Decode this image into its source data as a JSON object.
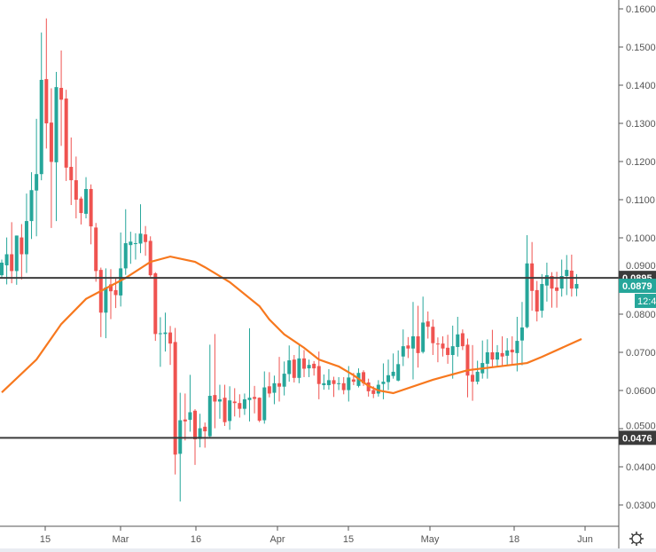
{
  "chart_data": {
    "type": "candlestick",
    "title": "",
    "colors": {
      "up": "#26a69a",
      "down": "#ef5350",
      "ma": "#f7781e",
      "level_line": "#3b3b3b",
      "last_price": "#26a69a"
    },
    "ylim": [
      0.027,
      0.162
    ],
    "y_ticks": [
      "0.1600",
      "0.1500",
      "0.1400",
      "0.1300",
      "0.1200",
      "0.1100",
      "0.1000",
      "0.0900",
      "0.0800",
      "0.0700",
      "0.0600",
      "0.0500",
      "0.0400",
      "0.0300"
    ],
    "x_tick_labels": [
      "15",
      "Mar",
      "16",
      "Apr",
      "15",
      "May",
      "18",
      "Jun"
    ],
    "horizontal_levels": [
      {
        "value": 0.0895,
        "label": "0.0895"
      },
      {
        "value": 0.0476,
        "label": "0.0476"
      }
    ],
    "last_price": {
      "value": 0.0879,
      "label": "0.0879",
      "countdown": "12:4"
    },
    "candles": [
      [
        0.0902,
        0.0943,
        0.0893,
        0.0935
      ],
      [
        0.0928,
        0.1001,
        0.0878,
        0.0957
      ],
      [
        0.0957,
        0.1041,
        0.0881,
        0.0913
      ],
      [
        0.0913,
        0.1006,
        0.0877,
        0.1006
      ],
      [
        0.1001,
        0.1036,
        0.0891,
        0.0957
      ],
      [
        0.0957,
        0.1116,
        0.0908,
        0.1044
      ],
      [
        0.1044,
        0.1172,
        0.0997,
        0.1125
      ],
      [
        0.1124,
        0.1312,
        0.1004,
        0.1167
      ],
      [
        0.1167,
        0.1538,
        0.1151,
        0.1414
      ],
      [
        0.1416,
        0.1575,
        0.1234,
        0.13
      ],
      [
        0.1302,
        0.1392,
        0.1026,
        0.1199
      ],
      [
        0.1198,
        0.1435,
        0.1044,
        0.1395
      ],
      [
        0.1393,
        0.1491,
        0.1241,
        0.1362
      ],
      [
        0.1365,
        0.1388,
        0.1149,
        0.1184
      ],
      [
        0.1186,
        0.1263,
        0.1086,
        0.1151
      ],
      [
        0.1151,
        0.1213,
        0.1051,
        0.11
      ],
      [
        0.1103,
        0.1108,
        0.1035,
        0.1065
      ],
      [
        0.1063,
        0.1159,
        0.1051,
        0.1128
      ],
      [
        0.1128,
        0.114,
        0.0983,
        0.103
      ],
      [
        0.1027,
        0.1039,
        0.0885,
        0.0913
      ],
      [
        0.0916,
        0.0922,
        0.074,
        0.0804
      ],
      [
        0.0804,
        0.092,
        0.0737,
        0.087
      ],
      [
        0.0878,
        0.0918,
        0.0787,
        0.086
      ],
      [
        0.0863,
        0.0893,
        0.0816,
        0.085
      ],
      [
        0.0849,
        0.1014,
        0.082,
        0.092
      ],
      [
        0.092,
        0.1075,
        0.0903,
        0.0986
      ],
      [
        0.0981,
        0.1016,
        0.0932,
        0.099
      ],
      [
        0.0985,
        0.1012,
        0.0943,
        0.0986
      ],
      [
        0.0985,
        0.1088,
        0.096,
        0.1011
      ],
      [
        0.1009,
        0.1031,
        0.0953,
        0.0989
      ],
      [
        0.0992,
        0.1004,
        0.0898,
        0.0902
      ],
      [
        0.0907,
        0.091,
        0.073,
        0.0748
      ],
      [
        0.0749,
        0.0792,
        0.0662,
        0.075
      ],
      [
        0.0748,
        0.0804,
        0.0702,
        0.0752
      ],
      [
        0.0752,
        0.0769,
        0.0667,
        0.0723
      ],
      [
        0.0727,
        0.0764,
        0.038,
        0.0432
      ],
      [
        0.0434,
        0.0594,
        0.0309,
        0.0522
      ],
      [
        0.0524,
        0.0592,
        0.0469,
        0.0519
      ],
      [
        0.0523,
        0.0641,
        0.0492,
        0.0543
      ],
      [
        0.0547,
        0.0551,
        0.0405,
        0.0472
      ],
      [
        0.0473,
        0.0539,
        0.0451,
        0.0501
      ],
      [
        0.0505,
        0.0516,
        0.045,
        0.0493
      ],
      [
        0.048,
        0.072,
        0.0476,
        0.0586
      ],
      [
        0.0588,
        0.0748,
        0.0501,
        0.0571
      ],
      [
        0.0571,
        0.0615,
        0.0526,
        0.0577
      ],
      [
        0.0581,
        0.0615,
        0.0507,
        0.0517
      ],
      [
        0.052,
        0.0611,
        0.0497,
        0.0574
      ],
      [
        0.0571,
        0.0606,
        0.0532,
        0.0567
      ],
      [
        0.0567,
        0.059,
        0.0529,
        0.0552
      ],
      [
        0.0552,
        0.0592,
        0.0536,
        0.0577
      ],
      [
        0.0575,
        0.0763,
        0.0519,
        0.0581
      ],
      [
        0.0583,
        0.0612,
        0.054,
        0.0578
      ],
      [
        0.0581,
        0.0582,
        0.0517,
        0.0521
      ],
      [
        0.0522,
        0.065,
        0.0513,
        0.0608
      ],
      [
        0.0611,
        0.0648,
        0.0582,
        0.0592
      ],
      [
        0.0594,
        0.0639,
        0.0564,
        0.0619
      ],
      [
        0.0619,
        0.0688,
        0.0571,
        0.061
      ],
      [
        0.061,
        0.0676,
        0.0587,
        0.0644
      ],
      [
        0.0643,
        0.0718,
        0.0623,
        0.0679
      ],
      [
        0.0681,
        0.0693,
        0.0621,
        0.0633
      ],
      [
        0.0633,
        0.0718,
        0.0619,
        0.0684
      ],
      [
        0.0684,
        0.0706,
        0.0635,
        0.0657
      ],
      [
        0.0658,
        0.0681,
        0.0635,
        0.0667
      ],
      [
        0.067,
        0.0677,
        0.0639,
        0.0658
      ],
      [
        0.0664,
        0.0702,
        0.0577,
        0.0617
      ],
      [
        0.0614,
        0.0642,
        0.0602,
        0.0619
      ],
      [
        0.0614,
        0.0656,
        0.0602,
        0.0627
      ],
      [
        0.0627,
        0.0636,
        0.0583,
        0.0617
      ],
      [
        0.0617,
        0.0635,
        0.0601,
        0.0619
      ],
      [
        0.0619,
        0.0635,
        0.059,
        0.0601
      ],
      [
        0.0601,
        0.0664,
        0.0571,
        0.0634
      ],
      [
        0.0629,
        0.0646,
        0.0614,
        0.0623
      ],
      [
        0.0612,
        0.0658,
        0.0608,
        0.0646
      ],
      [
        0.0648,
        0.0653,
        0.0612,
        0.0619
      ],
      [
        0.0621,
        0.0631,
        0.0584,
        0.0598
      ],
      [
        0.0601,
        0.0611,
        0.058,
        0.0591
      ],
      [
        0.0592,
        0.0627,
        0.0584,
        0.0615
      ],
      [
        0.0617,
        0.0671,
        0.0577,
        0.0623
      ],
      [
        0.0622,
        0.0681,
        0.0601,
        0.064
      ],
      [
        0.0638,
        0.0697,
        0.0631,
        0.0649
      ],
      [
        0.0626,
        0.0705,
        0.0624,
        0.0669
      ],
      [
        0.0689,
        0.076,
        0.0664,
        0.0716
      ],
      [
        0.0718,
        0.074,
        0.0685,
        0.071
      ],
      [
        0.071,
        0.0832,
        0.0629,
        0.0742
      ],
      [
        0.0742,
        0.0822,
        0.066,
        0.0698
      ],
      [
        0.0701,
        0.0846,
        0.0697,
        0.0778
      ],
      [
        0.0781,
        0.0807,
        0.0736,
        0.0767
      ],
      [
        0.0767,
        0.0786,
        0.0693,
        0.0724
      ],
      [
        0.0723,
        0.0739,
        0.0674,
        0.0722
      ],
      [
        0.0723,
        0.0742,
        0.0689,
        0.071
      ],
      [
        0.0712,
        0.0746,
        0.067,
        0.0693
      ],
      [
        0.0693,
        0.077,
        0.0631,
        0.0716
      ],
      [
        0.0714,
        0.0793,
        0.0689,
        0.0747
      ],
      [
        0.075,
        0.076,
        0.0706,
        0.0716
      ],
      [
        0.072,
        0.0736,
        0.0582,
        0.0639
      ],
      [
        0.0641,
        0.0719,
        0.0573,
        0.0623
      ],
      [
        0.0623,
        0.0678,
        0.0616,
        0.0649
      ],
      [
        0.0645,
        0.0731,
        0.0631,
        0.0672
      ],
      [
        0.067,
        0.0734,
        0.0631,
        0.07
      ],
      [
        0.07,
        0.0759,
        0.0662,
        0.0681
      ],
      [
        0.0681,
        0.0719,
        0.0662,
        0.07
      ],
      [
        0.0698,
        0.0742,
        0.0666,
        0.0689
      ],
      [
        0.0691,
        0.0737,
        0.0667,
        0.0705
      ],
      [
        0.0707,
        0.0742,
        0.0666,
        0.07
      ],
      [
        0.0698,
        0.0793,
        0.065,
        0.073
      ],
      [
        0.0731,
        0.0832,
        0.0666,
        0.0765
      ],
      [
        0.0766,
        0.1007,
        0.0763,
        0.0933
      ],
      [
        0.0933,
        0.0989,
        0.0809,
        0.0861
      ],
      [
        0.0863,
        0.0887,
        0.0781,
        0.0807
      ],
      [
        0.0809,
        0.0905,
        0.0791,
        0.0879
      ],
      [
        0.0875,
        0.0935,
        0.0833,
        0.0902
      ],
      [
        0.09,
        0.091,
        0.0817,
        0.0867
      ],
      [
        0.087,
        0.0911,
        0.0817,
        0.0861
      ],
      [
        0.0867,
        0.0943,
        0.0846,
        0.09
      ],
      [
        0.09,
        0.0955,
        0.085,
        0.0916
      ],
      [
        0.0914,
        0.0956,
        0.0846,
        0.0867
      ],
      [
        0.0867,
        0.0905,
        0.0847,
        0.0879
      ]
    ],
    "moving_average": [
      [
        0,
        0.0595
      ],
      [
        7,
        0.0681
      ],
      [
        12,
        0.0774
      ],
      [
        17,
        0.084
      ],
      [
        25,
        0.0895
      ],
      [
        30,
        0.0937
      ],
      [
        34,
        0.0951
      ],
      [
        39,
        0.0937
      ],
      [
        41,
        0.0923
      ],
      [
        46,
        0.0884
      ],
      [
        52,
        0.0821
      ],
      [
        54,
        0.0786
      ],
      [
        57,
        0.0747
      ],
      [
        61,
        0.0712
      ],
      [
        64,
        0.0681
      ],
      [
        68,
        0.0663
      ],
      [
        71,
        0.064
      ],
      [
        74,
        0.0612
      ],
      [
        76,
        0.06
      ],
      [
        79,
        0.0593
      ],
      [
        87,
        0.0628
      ],
      [
        94,
        0.0653
      ],
      [
        106,
        0.0672
      ],
      [
        109,
        0.0688
      ],
      [
        117,
        0.0735
      ]
    ]
  },
  "icons": {
    "settings": "gear-icon"
  }
}
